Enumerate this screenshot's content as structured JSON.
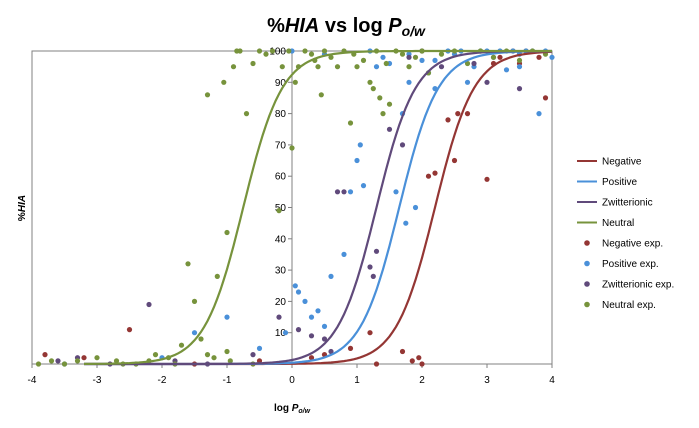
{
  "chart_data": {
    "type": "scatter",
    "title": {
      "prefix": "%",
      "italic": "HIA",
      "middle": " vs log ",
      "var": "P",
      "sub": "o/w"
    },
    "xlabel": {
      "text": "log ",
      "var": "P",
      "sub": "o/w"
    },
    "ylabel": {
      "prefix": "%",
      "italic": "HIA"
    },
    "xlim": [
      -4,
      4
    ],
    "ylim": [
      0,
      100
    ],
    "x_ticks": [
      "-4",
      "-3",
      "-2",
      "-1",
      "0",
      "1",
      "2",
      "3",
      "4"
    ],
    "y_ticks": [
      "10",
      "20",
      "30",
      "40",
      "50",
      "60",
      "70",
      "80",
      "90",
      "100"
    ],
    "legend_position": "right",
    "grid": false,
    "curves": [
      {
        "name": "Negative",
        "color": "#943634",
        "midpoint": 2.2,
        "slope": 1.45
      },
      {
        "name": "Positive",
        "color": "#4a90d9",
        "midpoint": 1.65,
        "slope": 1.45
      },
      {
        "name": "Zwitterionic",
        "color": "#604a7b",
        "midpoint": 1.3,
        "slope": 1.45
      },
      {
        "name": "Neutral",
        "color": "#77933c",
        "midpoint": -0.75,
        "slope": 1.45
      }
    ],
    "series": [
      {
        "name": "Negative exp.",
        "color": "#943634",
        "points": [
          [
            -3.8,
            3
          ],
          [
            -3.2,
            2
          ],
          [
            -2.5,
            11
          ],
          [
            -1.5,
            0
          ],
          [
            -0.5,
            1
          ],
          [
            0.3,
            2
          ],
          [
            0.5,
            3
          ],
          [
            0.9,
            5
          ],
          [
            1.2,
            10
          ],
          [
            1.3,
            0
          ],
          [
            1.7,
            4
          ],
          [
            1.85,
            1
          ],
          [
            1.95,
            2
          ],
          [
            2.0,
            0
          ],
          [
            2.1,
            60
          ],
          [
            2.2,
            61
          ],
          [
            2.4,
            78
          ],
          [
            2.5,
            65
          ],
          [
            2.55,
            80
          ],
          [
            2.7,
            80
          ],
          [
            3.0,
            59
          ],
          [
            3.1,
            96
          ],
          [
            3.2,
            98
          ],
          [
            3.4,
            100
          ],
          [
            3.5,
            96
          ],
          [
            3.6,
            100
          ],
          [
            3.8,
            98
          ],
          [
            3.9,
            85
          ]
        ]
      },
      {
        "name": "Positive exp.",
        "color": "#4a90d9",
        "points": [
          [
            -3.5,
            0
          ],
          [
            -2.0,
            2
          ],
          [
            -1.5,
            10
          ],
          [
            -1.0,
            15
          ],
          [
            -0.5,
            5
          ],
          [
            -0.1,
            10
          ],
          [
            0.05,
            25
          ],
          [
            0.1,
            23
          ],
          [
            0.2,
            20
          ],
          [
            0.3,
            15
          ],
          [
            0.4,
            17
          ],
          [
            0.5,
            12
          ],
          [
            0.6,
            28
          ],
          [
            0.8,
            35
          ],
          [
            0.9,
            55
          ],
          [
            1.0,
            65
          ],
          [
            1.05,
            70
          ],
          [
            1.1,
            57
          ],
          [
            1.2,
            100
          ],
          [
            1.3,
            95
          ],
          [
            1.4,
            98
          ],
          [
            1.5,
            96
          ],
          [
            1.6,
            55
          ],
          [
            1.7,
            80
          ],
          [
            1.75,
            45
          ],
          [
            1.8,
            90
          ],
          [
            1.9,
            50
          ],
          [
            2.0,
            97
          ],
          [
            2.1,
            93
          ],
          [
            2.2,
            88
          ],
          [
            2.4,
            100
          ],
          [
            2.5,
            99
          ],
          [
            2.6,
            100
          ],
          [
            2.7,
            90
          ],
          [
            2.8,
            95
          ],
          [
            2.9,
            100
          ],
          [
            3.0,
            100
          ],
          [
            3.1,
            98
          ],
          [
            3.2,
            100
          ],
          [
            3.3,
            94
          ],
          [
            3.4,
            100
          ],
          [
            3.5,
            99
          ],
          [
            3.6,
            100
          ],
          [
            3.7,
            100
          ],
          [
            3.8,
            80
          ],
          [
            3.9,
            100
          ],
          [
            4.0,
            98
          ],
          [
            0.0,
            100
          ],
          [
            0.5,
            99
          ],
          [
            1.8,
            99
          ],
          [
            2.2,
            97
          ],
          [
            3.5,
            95
          ]
        ]
      },
      {
        "name": "Zwitterionic exp.",
        "color": "#604a7b",
        "points": [
          [
            -3.6,
            1
          ],
          [
            -3.3,
            2
          ],
          [
            -2.8,
            0
          ],
          [
            -2.2,
            19
          ],
          [
            -1.8,
            1
          ],
          [
            -1.3,
            0
          ],
          [
            -0.6,
            3
          ],
          [
            -0.2,
            15
          ],
          [
            0.1,
            11
          ],
          [
            0.3,
            9
          ],
          [
            0.5,
            8
          ],
          [
            0.6,
            4
          ],
          [
            0.7,
            55
          ],
          [
            0.8,
            55
          ],
          [
            1.2,
            31
          ],
          [
            1.25,
            28
          ],
          [
            1.3,
            36
          ],
          [
            1.5,
            75
          ],
          [
            1.7,
            70
          ],
          [
            1.8,
            98
          ],
          [
            2.0,
            100
          ],
          [
            2.3,
            95
          ],
          [
            2.8,
            96
          ],
          [
            3.0,
            90
          ],
          [
            3.5,
            88
          ]
        ]
      },
      {
        "name": "Neutral exp.",
        "color": "#77933c",
        "points": [
          [
            -3.9,
            0
          ],
          [
            -3.7,
            1
          ],
          [
            -3.3,
            1
          ],
          [
            -3.0,
            2
          ],
          [
            -2.7,
            1
          ],
          [
            -2.4,
            0
          ],
          [
            -2.1,
            3
          ],
          [
            -1.9,
            2
          ],
          [
            -1.7,
            6
          ],
          [
            -1.6,
            32
          ],
          [
            -1.5,
            20
          ],
          [
            -1.4,
            8
          ],
          [
            -1.3,
            3
          ],
          [
            -1.2,
            2
          ],
          [
            -1.15,
            28
          ],
          [
            -1.0,
            4
          ],
          [
            -1.0,
            42
          ],
          [
            -0.9,
            95
          ],
          [
            -0.85,
            100
          ],
          [
            -0.7,
            80
          ],
          [
            -0.6,
            96
          ],
          [
            -0.5,
            100
          ],
          [
            -0.4,
            99
          ],
          [
            -0.3,
            100
          ],
          [
            -0.2,
            49
          ],
          [
            -0.15,
            95
          ],
          [
            -0.05,
            100
          ],
          [
            0.0,
            69
          ],
          [
            0.05,
            90
          ],
          [
            0.1,
            95
          ],
          [
            0.2,
            100
          ],
          [
            0.3,
            99
          ],
          [
            0.4,
            95
          ],
          [
            0.45,
            86
          ],
          [
            0.5,
            100
          ],
          [
            0.6,
            98
          ],
          [
            0.7,
            95
          ],
          [
            0.8,
            100
          ],
          [
            0.9,
            77
          ],
          [
            0.95,
            99
          ],
          [
            1.0,
            95
          ],
          [
            1.1,
            97
          ],
          [
            1.2,
            90
          ],
          [
            1.3,
            100
          ],
          [
            1.35,
            85
          ],
          [
            1.4,
            80
          ],
          [
            1.45,
            96
          ],
          [
            1.5,
            83
          ],
          [
            1.6,
            100
          ],
          [
            1.7,
            99
          ],
          [
            1.8,
            95
          ],
          [
            1.9,
            98
          ],
          [
            2.0,
            100
          ],
          [
            2.1,
            93
          ],
          [
            2.3,
            99
          ],
          [
            2.5,
            100
          ],
          [
            2.7,
            96
          ],
          [
            2.9,
            100
          ],
          [
            3.1,
            98
          ],
          [
            3.3,
            100
          ],
          [
            3.5,
            97
          ],
          [
            3.7,
            100
          ],
          [
            3.9,
            99
          ],
          [
            -1.3,
            86
          ],
          [
            -1.05,
            90
          ],
          [
            -0.8,
            100
          ],
          [
            0.35,
            97
          ],
          [
            1.25,
            88
          ],
          [
            -3.5,
            0
          ],
          [
            -2.6,
            0
          ],
          [
            -2.2,
            1
          ],
          [
            -1.8,
            0
          ],
          [
            -0.95,
            1
          ],
          [
            -0.6,
            0
          ]
        ]
      }
    ],
    "legend": [
      {
        "label": "Negative",
        "kind": "line",
        "color": "#943634"
      },
      {
        "label": "Positive",
        "kind": "line",
        "color": "#4a90d9"
      },
      {
        "label": "Zwitterionic",
        "kind": "line",
        "color": "#604a7b"
      },
      {
        "label": "Neutral",
        "kind": "line",
        "color": "#77933c"
      },
      {
        "label": "Negative exp.",
        "kind": "dot",
        "color": "#943634"
      },
      {
        "label": "Positive exp.",
        "kind": "dot",
        "color": "#4a90d9"
      },
      {
        "label": "Zwitterionic exp.",
        "kind": "dot",
        "color": "#604a7b"
      },
      {
        "label": "Neutral exp.",
        "kind": "dot",
        "color": "#77933c"
      }
    ]
  }
}
